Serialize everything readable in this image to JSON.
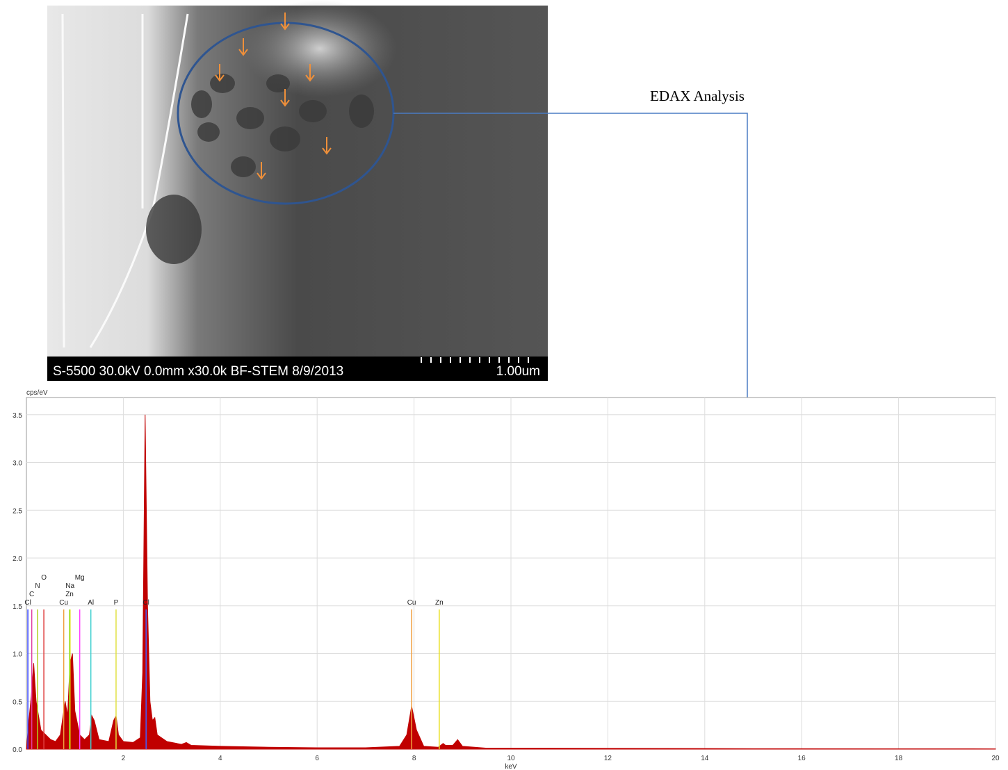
{
  "micrograph": {
    "caption": "S-5500 30.0kV 0.0mm x30.0k BF-STEM 8/9/2013",
    "scale_label": "1.00um"
  },
  "annotation": "EDAX Analysis",
  "chart_data": {
    "type": "area",
    "ylabel": "cps/eV",
    "xlabel": "keV",
    "color": "#c00000",
    "xlim": [
      0,
      20
    ],
    "xticks": [
      2,
      4,
      6,
      8,
      10,
      12,
      14,
      16,
      18,
      20
    ],
    "ylim": [
      0,
      3.68
    ],
    "yticks": [
      {
        "value": 0,
        "label": "0.0"
      },
      0.5,
      {
        "value": 1,
        "label": "1.0"
      },
      1.5,
      {
        "value": 2,
        "label": "2.0"
      },
      2.5,
      {
        "value": 3,
        "label": "3.0"
      },
      3.5
    ],
    "grid": true,
    "x": [
      0,
      0.05,
      0.1,
      0.15,
      0.2,
      0.25,
      0.3,
      0.4,
      0.5,
      0.6,
      0.7,
      0.8,
      0.85,
      0.9,
      0.95,
      1.0,
      1.1,
      1.2,
      1.3,
      1.35,
      1.4,
      1.5,
      1.7,
      1.8,
      1.85,
      1.9,
      2.0,
      2.2,
      2.35,
      2.4,
      2.45,
      2.5,
      2.55,
      2.6,
      2.65,
      2.7,
      2.9,
      3.2,
      3.3,
      3.4,
      4,
      5,
      6,
      7,
      7.7,
      7.85,
      7.95,
      8.05,
      8.2,
      8.5,
      8.6,
      8.65,
      8.8,
      8.9,
      9.0,
      9.5,
      10,
      12,
      15,
      20
    ],
    "values": [
      0,
      0.3,
      0.55,
      0.9,
      0.5,
      0.35,
      0.2,
      0.15,
      0.1,
      0.08,
      0.15,
      0.5,
      0.35,
      0.9,
      1.0,
      0.4,
      0.15,
      0.1,
      0.15,
      0.35,
      0.3,
      0.1,
      0.08,
      0.3,
      0.35,
      0.15,
      0.08,
      0.07,
      0.12,
      0.8,
      3.5,
      1.5,
      0.5,
      0.3,
      0.33,
      0.15,
      0.08,
      0.05,
      0.07,
      0.04,
      0.03,
      0.02,
      0.015,
      0.015,
      0.03,
      0.15,
      0.45,
      0.2,
      0.03,
      0.02,
      0.06,
      0.04,
      0.04,
      0.1,
      0.03,
      0.01,
      0.01,
      0.008,
      0.005,
      0.003
    ],
    "element_lines": [
      {
        "label": "Cl",
        "x": 0.03,
        "color": "#3040ff"
      },
      {
        "label": "C",
        "x": 0.11,
        "color": "#e040a0"
      },
      {
        "label": "N",
        "x": 0.23,
        "color": "#b0d020"
      },
      {
        "label": "O",
        "x": 0.36,
        "color": "#e04040"
      },
      {
        "label": "Cu",
        "x": 0.77,
        "color": "#f0a040"
      },
      {
        "label": "Zn",
        "x": 0.89,
        "color": "#50e050"
      },
      {
        "label": "Na",
        "x": 0.9,
        "color": "#e0e000"
      },
      {
        "label": "Mg",
        "x": 1.1,
        "color": "#ff40ff"
      },
      {
        "label": "Al",
        "x": 1.33,
        "color": "#40d0d0"
      },
      {
        "label": "P",
        "x": 1.85,
        "color": "#e0e040"
      },
      {
        "label": "Cl",
        "x": 2.47,
        "color": "#4060ff"
      },
      {
        "label": "Cu",
        "x": 7.95,
        "color": "#f0a040"
      },
      {
        "label": "Zn",
        "x": 8.52,
        "color": "#e8e020"
      }
    ]
  }
}
